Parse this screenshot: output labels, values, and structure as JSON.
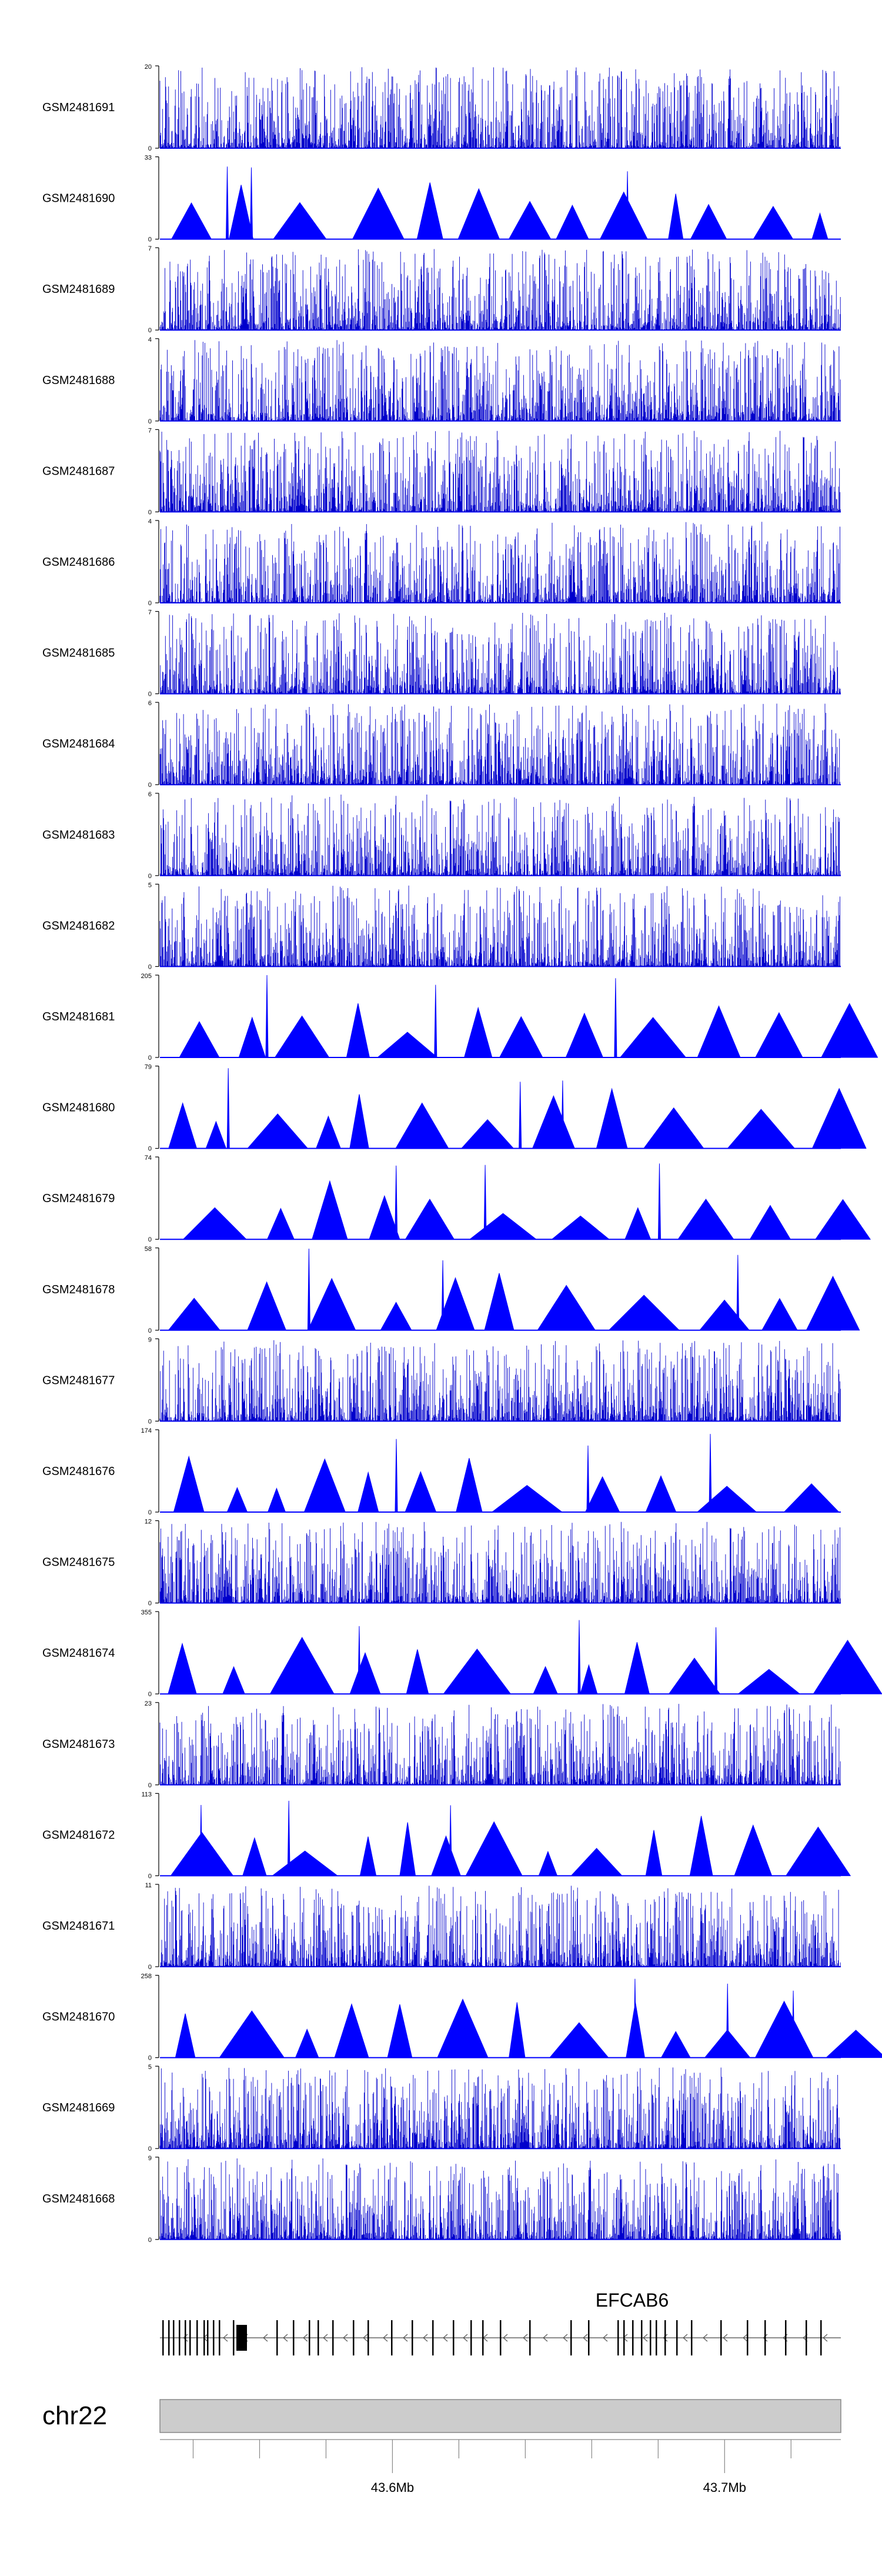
{
  "chart_data": {
    "type": "area",
    "colors": {
      "signal": "#0000ff",
      "axis": "#000000",
      "chrom_bar": "#cccccc",
      "chrom_border": "#888888"
    },
    "tracks": [
      {
        "name": "GSM2481691",
        "max": 20,
        "pattern": "noise"
      },
      {
        "name": "GSM2481690",
        "max": 33,
        "pattern": "peaks"
      },
      {
        "name": "GSM2481689",
        "max": 7,
        "pattern": "noise"
      },
      {
        "name": "GSM2481688",
        "max": 4,
        "pattern": "noise"
      },
      {
        "name": "GSM2481687",
        "max": 7,
        "pattern": "noise"
      },
      {
        "name": "GSM2481686",
        "max": 4,
        "pattern": "noise"
      },
      {
        "name": "GSM2481685",
        "max": 7,
        "pattern": "noise"
      },
      {
        "name": "GSM2481684",
        "max": 6,
        "pattern": "noise"
      },
      {
        "name": "GSM2481683",
        "max": 6,
        "pattern": "noise"
      },
      {
        "name": "GSM2481682",
        "max": 5,
        "pattern": "noise"
      },
      {
        "name": "GSM2481681",
        "max": 205,
        "pattern": "peaks"
      },
      {
        "name": "GSM2481680",
        "max": 79,
        "pattern": "peaks"
      },
      {
        "name": "GSM2481679",
        "max": 74,
        "pattern": "peaks"
      },
      {
        "name": "GSM2481678",
        "max": 58,
        "pattern": "peaks"
      },
      {
        "name": "GSM2481677",
        "max": 9,
        "pattern": "noise"
      },
      {
        "name": "GSM2481676",
        "max": 174,
        "pattern": "peaks"
      },
      {
        "name": "GSM2481675",
        "max": 12,
        "pattern": "noise"
      },
      {
        "name": "GSM2481674",
        "max": 355,
        "pattern": "peaks"
      },
      {
        "name": "GSM2481673",
        "max": 23,
        "pattern": "noise"
      },
      {
        "name": "GSM2481672",
        "max": 113,
        "pattern": "peaks"
      },
      {
        "name": "GSM2481671",
        "max": 11,
        "pattern": "noise"
      },
      {
        "name": "GSM2481670",
        "max": 258,
        "pattern": "peaks"
      },
      {
        "name": "GSM2481669",
        "max": 5,
        "pattern": "noise"
      },
      {
        "name": "GSM2481668",
        "max": 9,
        "pattern": "noise"
      }
    ],
    "gene": {
      "name": "EFCAB6",
      "strand": "-"
    },
    "chromosome": "chr22",
    "x_axis": {
      "range_mb": [
        43.53,
        43.735
      ],
      "labeled_ticks": [
        "43.6Mb",
        "43.7Mb"
      ]
    }
  }
}
